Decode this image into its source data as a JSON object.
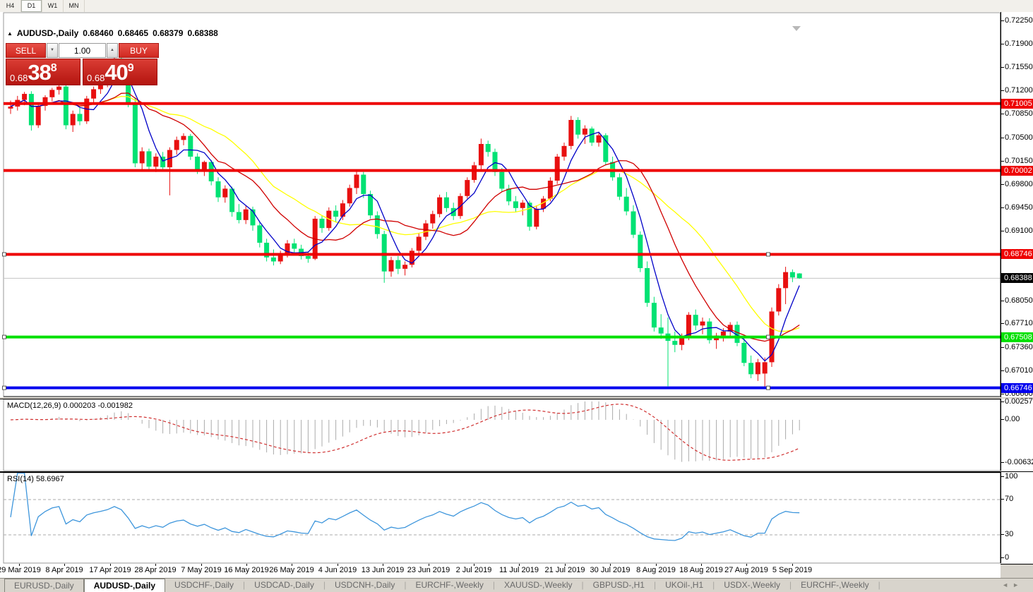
{
  "toolbar": {
    "timeframes": [
      "H4",
      "D1",
      "W1",
      "MN"
    ],
    "active": "D1"
  },
  "chart_header": {
    "collapse_icon": "▲",
    "symbol": "AUDUSD-,Daily",
    "open": "0.68460",
    "high": "0.68465",
    "low": "0.68379",
    "close": "0.68388"
  },
  "trade_panel": {
    "sell_label": "SELL",
    "buy_label": "BUY",
    "volume": "1.00",
    "sell_quote": {
      "base": "0.68",
      "big": "38",
      "pip": "8"
    },
    "buy_quote": {
      "base": "0.68",
      "big": "40",
      "pip": "9"
    }
  },
  "price_axis": {
    "ticks": [
      "0.72250",
      "0.71900",
      "0.71550",
      "0.71200",
      "0.70850",
      "0.70500",
      "0.70150",
      "0.69800",
      "0.69450",
      "0.69100",
      "0.68050",
      "0.67710",
      "0.67360",
      "0.67010",
      "0.66660"
    ]
  },
  "hlines": [
    {
      "price": 0.71005,
      "label": "0.71005",
      "color": "#EE0000",
      "handles": false
    },
    {
      "price": 0.70002,
      "label": "0.70002",
      "color": "#EE0000",
      "handles": false
    },
    {
      "price": 0.68746,
      "label": "0.68746",
      "color": "#EE0000",
      "handles": true
    },
    {
      "price": 0.67508,
      "label": "0.67508",
      "color": "#00E000",
      "handles": true
    },
    {
      "price": 0.66746,
      "label": "0.66746",
      "color": "#0000EE",
      "handles": true
    }
  ],
  "current_price": {
    "label": "0.68388",
    "price": 0.68388
  },
  "chart_data": {
    "type": "candlestick",
    "title": "AUDUSD-,Daily",
    "ylim": [
      0.6656,
      0.72263
    ],
    "bull_color": "#E81010",
    "bear_color": "#00E273",
    "x_labels": [
      "29 Mar 2019",
      "8 Apr 2019",
      "17 Apr 2019",
      "28 Apr 2019",
      "7 May 2019",
      "16 May 2019",
      "26 May 2019",
      "4 Jun 2019",
      "13 Jun 2019",
      "23 Jun 2019",
      "2 Jul 2019",
      "11 Jul 2019",
      "21 Jul 2019",
      "30 Jul 2019",
      "8 Aug 2019",
      "18 Aug 2019",
      "27 Aug 2019",
      "5 Sep 2019"
    ],
    "moving_averages": [
      {
        "period": 21,
        "color": "#FFFF00"
      },
      {
        "period": 13,
        "color": "#D00000"
      },
      {
        "period": 5,
        "color": "#0000C8"
      }
    ],
    "candles": [
      [
        0.7093,
        0.7105,
        0.7085,
        0.7096
      ],
      [
        0.7096,
        0.7112,
        0.709,
        0.7106
      ],
      [
        0.7106,
        0.7118,
        0.7098,
        0.7115
      ],
      [
        0.7115,
        0.7119,
        0.706,
        0.7068
      ],
      [
        0.7068,
        0.71,
        0.7064,
        0.7097
      ],
      [
        0.7097,
        0.7113,
        0.709,
        0.711
      ],
      [
        0.711,
        0.7124,
        0.7104,
        0.7121
      ],
      [
        0.7121,
        0.7132,
        0.7114,
        0.7126
      ],
      [
        0.7126,
        0.713,
        0.7062,
        0.7068
      ],
      [
        0.7068,
        0.709,
        0.7058,
        0.7085
      ],
      [
        0.7085,
        0.7094,
        0.7068,
        0.7074
      ],
      [
        0.7074,
        0.7112,
        0.707,
        0.7108
      ],
      [
        0.7108,
        0.7126,
        0.7102,
        0.7122
      ],
      [
        0.7122,
        0.7135,
        0.7115,
        0.7131
      ],
      [
        0.7131,
        0.7148,
        0.7125,
        0.7144
      ],
      [
        0.7144,
        0.7176,
        0.714,
        0.7168
      ],
      [
        0.7168,
        0.7174,
        0.7148,
        0.7152
      ],
      [
        0.7152,
        0.7156,
        0.7095,
        0.7102
      ],
      [
        0.7102,
        0.711,
        0.7005,
        0.7011
      ],
      [
        0.7011,
        0.7035,
        0.7001,
        0.7029
      ],
      [
        0.7029,
        0.7033,
        0.7,
        0.7006
      ],
      [
        0.7006,
        0.7026,
        0.6998,
        0.7021
      ],
      [
        0.7021,
        0.7028,
        0.7002,
        0.7005
      ],
      [
        0.7005,
        0.7035,
        0.6963,
        0.7031
      ],
      [
        0.7031,
        0.7051,
        0.7024,
        0.7046
      ],
      [
        0.7046,
        0.7056,
        0.7038,
        0.7052
      ],
      [
        0.7052,
        0.7055,
        0.7016,
        0.7021
      ],
      [
        0.7021,
        0.7026,
        0.6995,
        0.7002
      ],
      [
        0.7002,
        0.7015,
        0.6992,
        0.7013
      ],
      [
        0.7013,
        0.7016,
        0.6978,
        0.6984
      ],
      [
        0.6984,
        0.699,
        0.6953,
        0.696
      ],
      [
        0.696,
        0.6978,
        0.6952,
        0.6973
      ],
      [
        0.6973,
        0.6976,
        0.6931,
        0.6938
      ],
      [
        0.6938,
        0.695,
        0.6921,
        0.6926
      ],
      [
        0.6926,
        0.6948,
        0.692,
        0.6942
      ],
      [
        0.6942,
        0.6946,
        0.691,
        0.6918
      ],
      [
        0.6918,
        0.6923,
        0.6885,
        0.6892
      ],
      [
        0.6892,
        0.6898,
        0.6864,
        0.687
      ],
      [
        0.687,
        0.6882,
        0.6858,
        0.6864
      ],
      [
        0.6864,
        0.688,
        0.686,
        0.6876
      ],
      [
        0.6876,
        0.6896,
        0.687,
        0.6891
      ],
      [
        0.6891,
        0.6898,
        0.6876,
        0.6883
      ],
      [
        0.6883,
        0.6889,
        0.6867,
        0.6872
      ],
      [
        0.6872,
        0.6879,
        0.6862,
        0.6868
      ],
      [
        0.6868,
        0.6932,
        0.6866,
        0.6928
      ],
      [
        0.6928,
        0.6933,
        0.6907,
        0.6914
      ],
      [
        0.6914,
        0.6945,
        0.691,
        0.694
      ],
      [
        0.694,
        0.6948,
        0.6923,
        0.6931
      ],
      [
        0.6931,
        0.6956,
        0.6926,
        0.6951
      ],
      [
        0.6951,
        0.6979,
        0.6946,
        0.6974
      ],
      [
        0.6974,
        0.7,
        0.6965,
        0.6994
      ],
      [
        0.6994,
        0.6998,
        0.6959,
        0.6965
      ],
      [
        0.6965,
        0.697,
        0.6928,
        0.6933
      ],
      [
        0.6933,
        0.6939,
        0.6898,
        0.6905
      ],
      [
        0.6905,
        0.691,
        0.6832,
        0.6849
      ],
      [
        0.6849,
        0.6871,
        0.6841,
        0.6866
      ],
      [
        0.6866,
        0.6872,
        0.6845,
        0.6853
      ],
      [
        0.6853,
        0.6864,
        0.6843,
        0.6859
      ],
      [
        0.6859,
        0.6884,
        0.6855,
        0.688
      ],
      [
        0.688,
        0.6906,
        0.6876,
        0.6901
      ],
      [
        0.6901,
        0.6926,
        0.6896,
        0.6921
      ],
      [
        0.6921,
        0.694,
        0.6913,
        0.6935
      ],
      [
        0.6935,
        0.6964,
        0.693,
        0.696
      ],
      [
        0.696,
        0.6968,
        0.6938,
        0.6944
      ],
      [
        0.6944,
        0.6952,
        0.6926,
        0.6932
      ],
      [
        0.6932,
        0.6966,
        0.6928,
        0.6962
      ],
      [
        0.6962,
        0.699,
        0.6958,
        0.6986
      ],
      [
        0.6986,
        0.7013,
        0.6982,
        0.7008
      ],
      [
        0.7008,
        0.7048,
        0.7002,
        0.704
      ],
      [
        0.704,
        0.7045,
        0.7021,
        0.7028
      ],
      [
        0.7028,
        0.7033,
        0.6992,
        0.6998
      ],
      [
        0.6998,
        0.7004,
        0.6968,
        0.6973
      ],
      [
        0.6973,
        0.6979,
        0.6948,
        0.6954
      ],
      [
        0.6954,
        0.6962,
        0.6938,
        0.6944
      ],
      [
        0.6944,
        0.6956,
        0.6933,
        0.6952
      ],
      [
        0.6952,
        0.6955,
        0.691,
        0.6916
      ],
      [
        0.6916,
        0.6948,
        0.6912,
        0.6943
      ],
      [
        0.6943,
        0.6962,
        0.6938,
        0.6958
      ],
      [
        0.6958,
        0.699,
        0.6954,
        0.6985
      ],
      [
        0.6985,
        0.7025,
        0.698,
        0.7021
      ],
      [
        0.7021,
        0.7042,
        0.7015,
        0.7037
      ],
      [
        0.7037,
        0.7082,
        0.7032,
        0.7076
      ],
      [
        0.7076,
        0.708,
        0.7048,
        0.7054
      ],
      [
        0.7054,
        0.7068,
        0.704,
        0.7063
      ],
      [
        0.7063,
        0.7066,
        0.7037,
        0.7042
      ],
      [
        0.7042,
        0.7058,
        0.7036,
        0.7053
      ],
      [
        0.7053,
        0.7056,
        0.7008,
        0.7013
      ],
      [
        0.7013,
        0.7021,
        0.6985,
        0.699
      ],
      [
        0.699,
        0.6996,
        0.6956,
        0.6961
      ],
      [
        0.6961,
        0.6974,
        0.6933,
        0.6939
      ],
      [
        0.6939,
        0.6948,
        0.6899,
        0.6904
      ],
      [
        0.6904,
        0.6909,
        0.6848,
        0.6854
      ],
      [
        0.6854,
        0.6864,
        0.6796,
        0.6802
      ],
      [
        0.6802,
        0.6811,
        0.6759,
        0.6765
      ],
      [
        0.6765,
        0.6785,
        0.6748,
        0.6756
      ],
      [
        0.6756,
        0.678,
        0.6677,
        0.6745
      ],
      [
        0.6745,
        0.6759,
        0.6728,
        0.6739
      ],
      [
        0.6739,
        0.6756,
        0.6731,
        0.675
      ],
      [
        0.675,
        0.6788,
        0.6746,
        0.6784
      ],
      [
        0.6784,
        0.6792,
        0.6761,
        0.6768
      ],
      [
        0.6768,
        0.678,
        0.6755,
        0.6774
      ],
      [
        0.6774,
        0.6779,
        0.6741,
        0.6746
      ],
      [
        0.6746,
        0.6757,
        0.6733,
        0.6753
      ],
      [
        0.6753,
        0.6764,
        0.6744,
        0.6759
      ],
      [
        0.6759,
        0.6773,
        0.675,
        0.6769
      ],
      [
        0.6769,
        0.6774,
        0.6737,
        0.6742
      ],
      [
        0.6742,
        0.675,
        0.6707,
        0.6712
      ],
      [
        0.6712,
        0.6723,
        0.6689,
        0.6695
      ],
      [
        0.6695,
        0.6718,
        0.6685,
        0.6713
      ],
      [
        0.6696,
        0.672,
        0.6676,
        0.6713
      ],
      [
        0.6713,
        0.6795,
        0.6706,
        0.6789
      ],
      [
        0.6789,
        0.683,
        0.6783,
        0.6824
      ],
      [
        0.6824,
        0.6856,
        0.68,
        0.6848
      ],
      [
        0.6848,
        0.6852,
        0.6833,
        0.684
      ],
      [
        0.6846,
        0.68465,
        0.68379,
        0.68388
      ]
    ],
    "indicators": {
      "macd": {
        "label": "MACD(12,26,9)",
        "fast": 12,
        "slow": 26,
        "signal": 9,
        "value": "0.000203",
        "signal_value": "-0.001982",
        "axis": [
          "0.002574",
          "0.00",
          "-0.006326"
        ],
        "histogram_color": "#ABABAB",
        "signal_color": "#D03030"
      },
      "rsi": {
        "label": "RSI(14)",
        "period": 14,
        "value": "58.6967",
        "axis": [
          "100",
          "70",
          "30",
          "0"
        ],
        "levels": [
          70,
          30
        ],
        "line_color": "#3E96DC"
      }
    }
  },
  "tabs": {
    "items": [
      "EURUSD-,Daily",
      "AUDUSD-,Daily",
      "USDCHF-,Daily",
      "USDCAD-,Daily",
      "USDCNH-,Daily",
      "EURCHF-,Weekly",
      "XAUUSD-,Weekly",
      "GBPUSD-,H1",
      "UKOil-,H1",
      "USDX-,Weekly",
      "EURCHF-,Weekly"
    ],
    "active_index": 1,
    "scroll_left_icon": "◄",
    "scroll_right_icon": "►"
  }
}
